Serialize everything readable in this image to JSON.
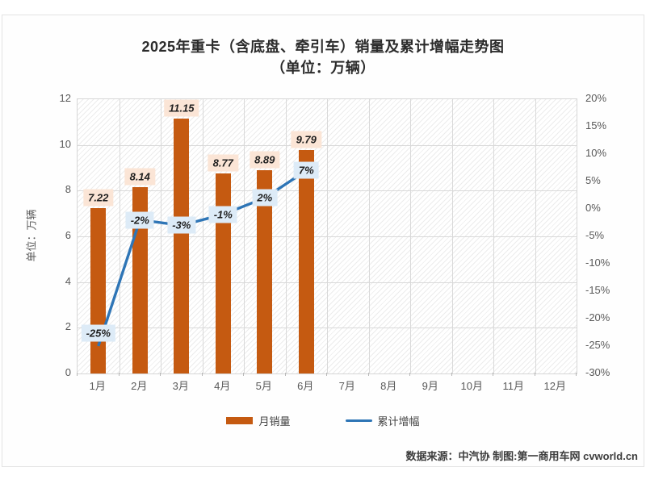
{
  "title": {
    "line1": "2025年重卡（含底盘、牵引车）销量及累计增幅走势图",
    "line2": "（单位：万辆）"
  },
  "chart_data": {
    "type": "combo",
    "categories": [
      "1月",
      "2月",
      "3月",
      "4月",
      "5月",
      "6月",
      "7月",
      "8月",
      "9月",
      "10月",
      "11月",
      "12月"
    ],
    "series": [
      {
        "name": "月销量",
        "type": "bar",
        "values": [
          7.22,
          8.14,
          11.15,
          8.77,
          8.89,
          9.79
        ],
        "labels": [
          "7.22",
          "8.14",
          "11.15",
          "8.77",
          "8.89",
          "9.79"
        ],
        "color": "#C55A11"
      },
      {
        "name": "累计增幅",
        "type": "line",
        "values": [
          -25,
          -2,
          -3,
          -1,
          2,
          7
        ],
        "labels": [
          "-25%",
          "-2%",
          "-3%",
          "-1%",
          "2%",
          "7%"
        ],
        "color": "#2E75B6"
      }
    ],
    "left_axis": {
      "title": "单位：万辆",
      "min": 0,
      "max": 12,
      "step": 2,
      "ticks": [
        "0",
        "2",
        "4",
        "6",
        "8",
        "10",
        "12"
      ]
    },
    "right_axis": {
      "min": -30,
      "max": 20,
      "step": 5,
      "ticks_top_down": [
        "20%",
        "15%",
        "10%",
        "5%",
        "0%",
        "-5%",
        "-10%",
        "-15%",
        "-20%",
        "-25%",
        "-30%"
      ]
    },
    "grid": true,
    "legend_position": "bottom",
    "plot_background": "diagonal-hatch"
  },
  "legend": [
    {
      "label": "月销量",
      "swatch": "bar",
      "color": "#C55A11"
    },
    {
      "label": "累计增幅",
      "swatch": "line",
      "color": "#2E75B6"
    }
  ],
  "footer": {
    "text": "数据来源：中汽协  制图:第一商用车网 cvworld.cn"
  },
  "colors": {
    "bar": "#C55A11",
    "line": "#2E75B6",
    "bar_label_bg": "#FBE5D6",
    "line_label_bg": "#DDEBF7",
    "grid": "#D9D9D9",
    "axis_text": "#595959",
    "title_text": "#2B2B2B"
  }
}
